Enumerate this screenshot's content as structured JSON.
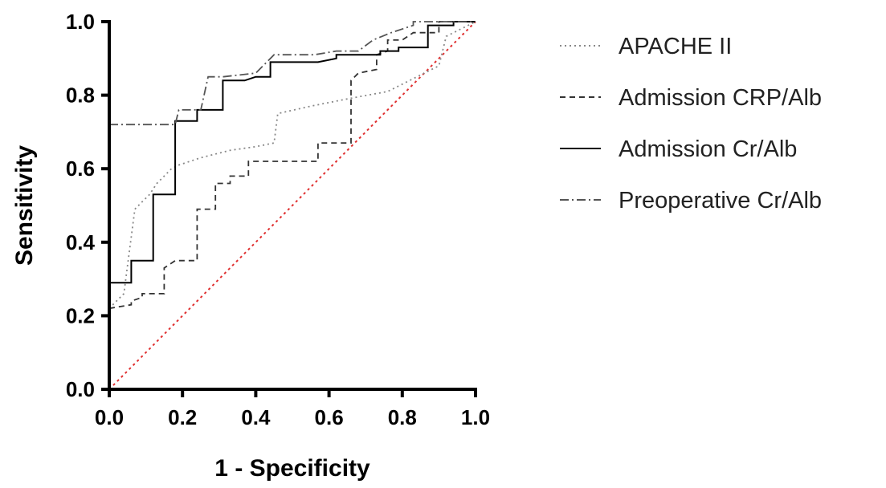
{
  "chart_data": {
    "type": "line",
    "title": "",
    "xlabel": "1 - Specificity",
    "ylabel": "Sensitivity",
    "xlim": [
      0,
      1
    ],
    "ylim": [
      0,
      1
    ],
    "x_ticks": [
      "0.0",
      "0.2",
      "0.4",
      "0.6",
      "0.8",
      "1.0"
    ],
    "y_ticks": [
      "0.0",
      "0.2",
      "0.4",
      "0.6",
      "0.8",
      "1.0"
    ],
    "grid": false,
    "legend_position": "right",
    "reference_line": {
      "points": [
        [
          0,
          0
        ],
        [
          1,
          1
        ]
      ],
      "color": "#e03030",
      "style": "dotted"
    },
    "series": [
      {
        "name": "APACHE II",
        "style": "dotted",
        "color": "#888888",
        "points": [
          [
            0,
            0.22
          ],
          [
            0.04,
            0.26
          ],
          [
            0.07,
            0.49
          ],
          [
            0.09,
            0.51
          ],
          [
            0.11,
            0.53
          ],
          [
            0.13,
            0.56
          ],
          [
            0.15,
            0.58
          ],
          [
            0.17,
            0.6
          ],
          [
            0.19,
            0.61
          ],
          [
            0.25,
            0.63
          ],
          [
            0.33,
            0.65
          ],
          [
            0.4,
            0.66
          ],
          [
            0.45,
            0.67
          ],
          [
            0.46,
            0.75
          ],
          [
            0.55,
            0.77
          ],
          [
            0.65,
            0.79
          ],
          [
            0.76,
            0.81
          ],
          [
            0.8,
            0.83
          ],
          [
            0.84,
            0.85
          ],
          [
            0.9,
            0.88
          ],
          [
            0.92,
            0.96
          ],
          [
            1,
            1
          ]
        ]
      },
      {
        "name": "Admission CRP/Alb",
        "style": "dashed",
        "color": "#333333",
        "points": [
          [
            0,
            0.22
          ],
          [
            0.06,
            0.23
          ],
          [
            0.06,
            0.24
          ],
          [
            0.09,
            0.25
          ],
          [
            0.09,
            0.26
          ],
          [
            0.15,
            0.26
          ],
          [
            0.15,
            0.33
          ],
          [
            0.18,
            0.35
          ],
          [
            0.24,
            0.35
          ],
          [
            0.24,
            0.49
          ],
          [
            0.29,
            0.49
          ],
          [
            0.29,
            0.56
          ],
          [
            0.33,
            0.56
          ],
          [
            0.33,
            0.58
          ],
          [
            0.38,
            0.58
          ],
          [
            0.38,
            0.62
          ],
          [
            0.45,
            0.62
          ],
          [
            0.57,
            0.62
          ],
          [
            0.57,
            0.67
          ],
          [
            0.66,
            0.67
          ],
          [
            0.66,
            0.84
          ],
          [
            0.68,
            0.86
          ],
          [
            0.73,
            0.87
          ],
          [
            0.73,
            0.91
          ],
          [
            0.76,
            0.92
          ],
          [
            0.76,
            0.95
          ],
          [
            0.8,
            0.95
          ],
          [
            0.83,
            0.97
          ],
          [
            0.9,
            0.97
          ],
          [
            0.9,
            1.0
          ],
          [
            1,
            1
          ]
        ]
      },
      {
        "name": "Admission Cr/Alb",
        "style": "solid",
        "color": "#000000",
        "points": [
          [
            0,
            0.29
          ],
          [
            0.06,
            0.29
          ],
          [
            0.06,
            0.35
          ],
          [
            0.12,
            0.35
          ],
          [
            0.12,
            0.53
          ],
          [
            0.18,
            0.53
          ],
          [
            0.18,
            0.73
          ],
          [
            0.24,
            0.73
          ],
          [
            0.24,
            0.76
          ],
          [
            0.31,
            0.76
          ],
          [
            0.31,
            0.84
          ],
          [
            0.37,
            0.84
          ],
          [
            0.4,
            0.85
          ],
          [
            0.44,
            0.85
          ],
          [
            0.44,
            0.89
          ],
          [
            0.57,
            0.89
          ],
          [
            0.62,
            0.9
          ],
          [
            0.62,
            0.91
          ],
          [
            0.74,
            0.91
          ],
          [
            0.74,
            0.92
          ],
          [
            0.79,
            0.92
          ],
          [
            0.79,
            0.93
          ],
          [
            0.83,
            0.93
          ],
          [
            0.87,
            0.93
          ],
          [
            0.87,
            0.99
          ],
          [
            0.94,
            0.99
          ],
          [
            0.94,
            1.0
          ],
          [
            1,
            1
          ]
        ]
      },
      {
        "name": "Preoperative Cr/Alb",
        "style": "dashdot",
        "color": "#555555",
        "points": [
          [
            0,
            0.72
          ],
          [
            0.15,
            0.72
          ],
          [
            0.18,
            0.72
          ],
          [
            0.19,
            0.76
          ],
          [
            0.25,
            0.76
          ],
          [
            0.27,
            0.85
          ],
          [
            0.31,
            0.85
          ],
          [
            0.4,
            0.86
          ],
          [
            0.45,
            0.91
          ],
          [
            0.56,
            0.91
          ],
          [
            0.62,
            0.92
          ],
          [
            0.68,
            0.92
          ],
          [
            0.72,
            0.95
          ],
          [
            0.77,
            0.97
          ],
          [
            0.83,
            0.99
          ],
          [
            0.83,
            1.0
          ],
          [
            0.88,
            1.0
          ],
          [
            1,
            1
          ]
        ]
      }
    ]
  }
}
